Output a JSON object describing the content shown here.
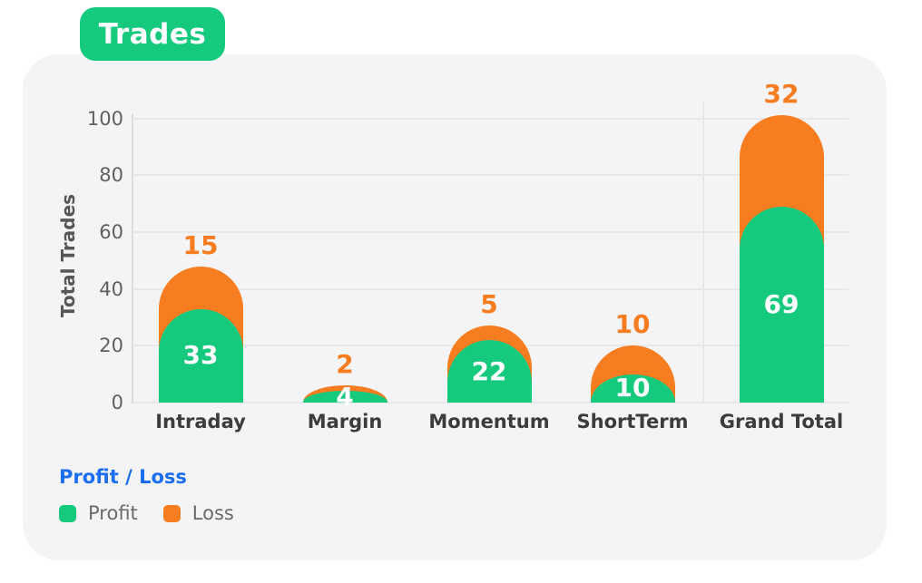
{
  "title_badge": "Trades",
  "colors": {
    "profit": "#15c97d",
    "loss": "#f87c20",
    "badge_bg": "#15c97d",
    "legend_title": "#1b6df1",
    "grid": "#e8e8ea",
    "axis_line": "#dcdcde",
    "axis_text": "#606060",
    "category_text": "#3c3c3c",
    "value_text_on_bar": "#ffffff",
    "legend_label": "#6a6a6a",
    "panel_bg": "#f4f4f6",
    "page_bg": "#ffffff"
  },
  "chart_data": {
    "type": "bar",
    "stacked": true,
    "title": "Trades",
    "categories": [
      "Intraday",
      "Margin",
      "Momentum",
      "ShortTerm",
      "Grand Total"
    ],
    "series": [
      {
        "name": "Profit",
        "values": [
          33,
          4,
          22,
          10,
          69
        ]
      },
      {
        "name": "Loss",
        "values": [
          15,
          2,
          5,
          10,
          32
        ]
      }
    ],
    "totals": [
      48,
      6,
      27,
      20,
      101
    ],
    "ylabel": "Total Trades",
    "xlabel": "",
    "yticks": [
      0,
      20,
      40,
      60,
      80,
      100
    ],
    "ylim": [
      0,
      107
    ],
    "grid": "horizontal",
    "bar_style": "rounded-top",
    "bar_labels": "loss value above bar in orange, profit value inside green segment in white",
    "legend_position": "bottom-left"
  },
  "legend": {
    "title": "Profit / Loss",
    "items": [
      {
        "label": "Profit",
        "color": "#15c97d"
      },
      {
        "label": "Loss",
        "color": "#f87c20"
      }
    ]
  }
}
